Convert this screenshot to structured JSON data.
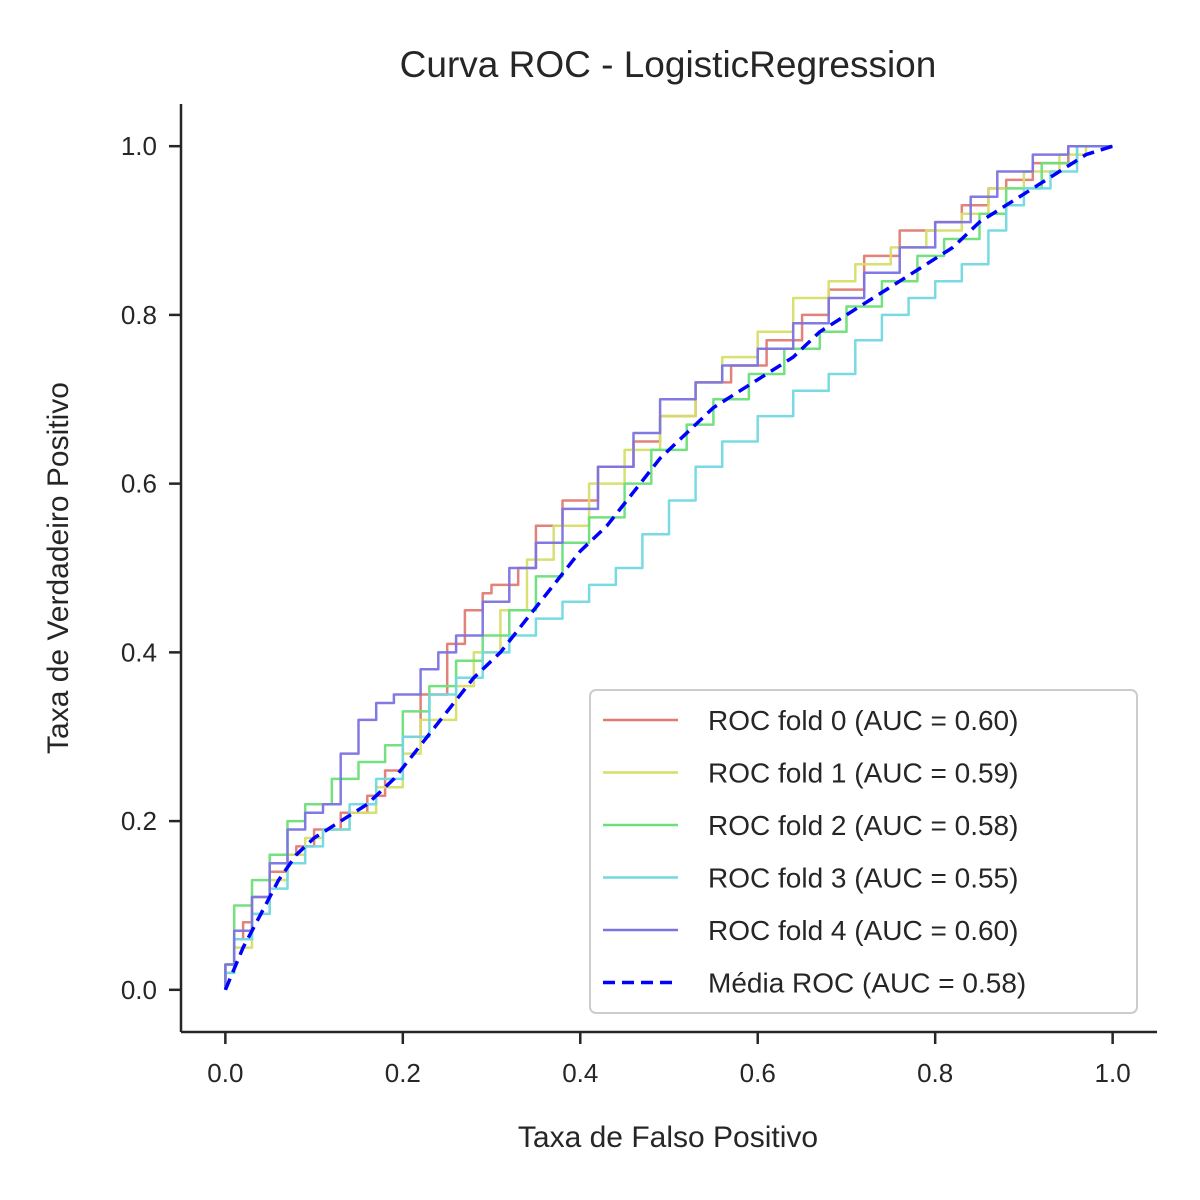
{
  "chart_data": {
    "type": "line",
    "title": "Curva ROC - LogisticRegression",
    "xlabel": "Taxa de Falso Positivo",
    "ylabel": "Taxa de Verdadeiro Positivo",
    "xlim": [
      -0.05,
      1.05
    ],
    "ylim": [
      -0.05,
      1.05
    ],
    "xticks": [
      0.0,
      0.2,
      0.4,
      0.6,
      0.8,
      1.0
    ],
    "yticks": [
      0.0,
      0.2,
      0.4,
      0.6,
      0.8,
      1.0
    ],
    "xtick_labels": [
      "0.0",
      "0.2",
      "0.4",
      "0.6",
      "0.8",
      "1.0"
    ],
    "ytick_labels": [
      "0.0",
      "0.2",
      "0.4",
      "0.6",
      "0.8",
      "1.0"
    ],
    "grid": false,
    "legend_position": "lower-right",
    "series": [
      {
        "name": "ROC fold 0 (AUC = 0.60)",
        "color": "#e07b72",
        "style": "solid",
        "step": true,
        "points": [
          [
            0,
            0
          ],
          [
            0.01,
            0.03
          ],
          [
            0.02,
            0.06
          ],
          [
            0.03,
            0.08
          ],
          [
            0.05,
            0.11
          ],
          [
            0.07,
            0.14
          ],
          [
            0.08,
            0.16
          ],
          [
            0.1,
            0.17
          ],
          [
            0.13,
            0.19
          ],
          [
            0.16,
            0.21
          ],
          [
            0.18,
            0.23
          ],
          [
            0.2,
            0.26
          ],
          [
            0.22,
            0.3
          ],
          [
            0.25,
            0.35
          ],
          [
            0.27,
            0.41
          ],
          [
            0.29,
            0.45
          ],
          [
            0.3,
            0.47
          ],
          [
            0.33,
            0.48
          ],
          [
            0.35,
            0.5
          ],
          [
            0.38,
            0.55
          ],
          [
            0.42,
            0.58
          ],
          [
            0.46,
            0.62
          ],
          [
            0.49,
            0.65
          ],
          [
            0.53,
            0.68
          ],
          [
            0.57,
            0.72
          ],
          [
            0.61,
            0.74
          ],
          [
            0.65,
            0.77
          ],
          [
            0.68,
            0.8
          ],
          [
            0.72,
            0.83
          ],
          [
            0.76,
            0.87
          ],
          [
            0.8,
            0.9
          ],
          [
            0.83,
            0.91
          ],
          [
            0.86,
            0.93
          ],
          [
            0.88,
            0.95
          ],
          [
            0.91,
            0.96
          ],
          [
            0.95,
            0.98
          ],
          [
            1.0,
            1.0
          ]
        ]
      },
      {
        "name": "ROC fold 1 (AUC = 0.59)",
        "color": "#d6de6a",
        "style": "solid",
        "step": true,
        "points": [
          [
            0,
            0
          ],
          [
            0.01,
            0.02
          ],
          [
            0.03,
            0.05
          ],
          [
            0.05,
            0.09
          ],
          [
            0.07,
            0.13
          ],
          [
            0.09,
            0.16
          ],
          [
            0.11,
            0.18
          ],
          [
            0.14,
            0.19
          ],
          [
            0.17,
            0.21
          ],
          [
            0.2,
            0.24
          ],
          [
            0.22,
            0.28
          ],
          [
            0.26,
            0.32
          ],
          [
            0.28,
            0.36
          ],
          [
            0.31,
            0.4
          ],
          [
            0.34,
            0.45
          ],
          [
            0.37,
            0.51
          ],
          [
            0.41,
            0.55
          ],
          [
            0.45,
            0.6
          ],
          [
            0.49,
            0.64
          ],
          [
            0.53,
            0.68
          ],
          [
            0.56,
            0.72
          ],
          [
            0.6,
            0.75
          ],
          [
            0.64,
            0.78
          ],
          [
            0.68,
            0.82
          ],
          [
            0.71,
            0.84
          ],
          [
            0.75,
            0.86
          ],
          [
            0.79,
            0.88
          ],
          [
            0.83,
            0.9
          ],
          [
            0.86,
            0.92
          ],
          [
            0.9,
            0.95
          ],
          [
            0.94,
            0.97
          ],
          [
            0.97,
            0.99
          ],
          [
            1.0,
            1.0
          ]
        ]
      },
      {
        "name": "ROC fold 2 (AUC = 0.58)",
        "color": "#6ddf7a",
        "style": "solid",
        "step": true,
        "points": [
          [
            0,
            0
          ],
          [
            0.01,
            0.03
          ],
          [
            0.03,
            0.1
          ],
          [
            0.05,
            0.13
          ],
          [
            0.07,
            0.16
          ],
          [
            0.09,
            0.2
          ],
          [
            0.12,
            0.22
          ],
          [
            0.15,
            0.25
          ],
          [
            0.18,
            0.27
          ],
          [
            0.2,
            0.29
          ],
          [
            0.23,
            0.33
          ],
          [
            0.26,
            0.36
          ],
          [
            0.29,
            0.39
          ],
          [
            0.32,
            0.42
          ],
          [
            0.35,
            0.45
          ],
          [
            0.38,
            0.49
          ],
          [
            0.41,
            0.53
          ],
          [
            0.45,
            0.56
          ],
          [
            0.48,
            0.6
          ],
          [
            0.52,
            0.64
          ],
          [
            0.55,
            0.67
          ],
          [
            0.59,
            0.7
          ],
          [
            0.63,
            0.73
          ],
          [
            0.67,
            0.76
          ],
          [
            0.7,
            0.78
          ],
          [
            0.74,
            0.81
          ],
          [
            0.78,
            0.84
          ],
          [
            0.81,
            0.87
          ],
          [
            0.85,
            0.89
          ],
          [
            0.88,
            0.92
          ],
          [
            0.92,
            0.95
          ],
          [
            0.96,
            0.98
          ],
          [
            1.0,
            1.0
          ]
        ]
      },
      {
        "name": "ROC fold 3 (AUC = 0.55)",
        "color": "#72d8e0",
        "style": "solid",
        "step": true,
        "points": [
          [
            0,
            0
          ],
          [
            0.01,
            0.02
          ],
          [
            0.03,
            0.06
          ],
          [
            0.05,
            0.09
          ],
          [
            0.07,
            0.12
          ],
          [
            0.09,
            0.15
          ],
          [
            0.11,
            0.17
          ],
          [
            0.14,
            0.19
          ],
          [
            0.17,
            0.22
          ],
          [
            0.2,
            0.25
          ],
          [
            0.23,
            0.3
          ],
          [
            0.26,
            0.35
          ],
          [
            0.29,
            0.37
          ],
          [
            0.32,
            0.4
          ],
          [
            0.35,
            0.42
          ],
          [
            0.38,
            0.44
          ],
          [
            0.41,
            0.46
          ],
          [
            0.44,
            0.48
          ],
          [
            0.47,
            0.5
          ],
          [
            0.5,
            0.54
          ],
          [
            0.53,
            0.58
          ],
          [
            0.56,
            0.62
          ],
          [
            0.6,
            0.65
          ],
          [
            0.64,
            0.68
          ],
          [
            0.68,
            0.71
          ],
          [
            0.71,
            0.73
          ],
          [
            0.74,
            0.77
          ],
          [
            0.77,
            0.8
          ],
          [
            0.8,
            0.82
          ],
          [
            0.83,
            0.84
          ],
          [
            0.86,
            0.86
          ],
          [
            0.88,
            0.9
          ],
          [
            0.9,
            0.93
          ],
          [
            0.93,
            0.95
          ],
          [
            0.96,
            0.97
          ],
          [
            1.0,
            1.0
          ]
        ]
      },
      {
        "name": "ROC fold 4 (AUC = 0.60)",
        "color": "#7b73e0",
        "style": "solid",
        "step": true,
        "points": [
          [
            0,
            0
          ],
          [
            0.01,
            0.03
          ],
          [
            0.03,
            0.07
          ],
          [
            0.05,
            0.11
          ],
          [
            0.07,
            0.15
          ],
          [
            0.09,
            0.19
          ],
          [
            0.11,
            0.21
          ],
          [
            0.13,
            0.22
          ],
          [
            0.15,
            0.28
          ],
          [
            0.17,
            0.32
          ],
          [
            0.19,
            0.34
          ],
          [
            0.22,
            0.35
          ],
          [
            0.24,
            0.38
          ],
          [
            0.26,
            0.4
          ],
          [
            0.29,
            0.42
          ],
          [
            0.32,
            0.46
          ],
          [
            0.35,
            0.5
          ],
          [
            0.38,
            0.53
          ],
          [
            0.42,
            0.57
          ],
          [
            0.46,
            0.62
          ],
          [
            0.49,
            0.66
          ],
          [
            0.53,
            0.7
          ],
          [
            0.56,
            0.72
          ],
          [
            0.6,
            0.74
          ],
          [
            0.64,
            0.76
          ],
          [
            0.68,
            0.79
          ],
          [
            0.72,
            0.82
          ],
          [
            0.76,
            0.85
          ],
          [
            0.8,
            0.88
          ],
          [
            0.84,
            0.91
          ],
          [
            0.87,
            0.94
          ],
          [
            0.91,
            0.97
          ],
          [
            0.95,
            0.99
          ],
          [
            1.0,
            1.0
          ]
        ]
      },
      {
        "name": "Média ROC (AUC = 0.58)",
        "color": "#0000ff",
        "style": "dashed",
        "step": false,
        "points": [
          [
            0,
            0
          ],
          [
            0.02,
            0.05
          ],
          [
            0.04,
            0.09
          ],
          [
            0.06,
            0.13
          ],
          [
            0.08,
            0.16
          ],
          [
            0.1,
            0.18
          ],
          [
            0.13,
            0.2
          ],
          [
            0.16,
            0.22
          ],
          [
            0.19,
            0.25
          ],
          [
            0.22,
            0.29
          ],
          [
            0.25,
            0.33
          ],
          [
            0.28,
            0.37
          ],
          [
            0.31,
            0.4
          ],
          [
            0.34,
            0.44
          ],
          [
            0.37,
            0.48
          ],
          [
            0.4,
            0.52
          ],
          [
            0.43,
            0.55
          ],
          [
            0.46,
            0.59
          ],
          [
            0.49,
            0.63
          ],
          [
            0.52,
            0.66
          ],
          [
            0.55,
            0.69
          ],
          [
            0.58,
            0.71
          ],
          [
            0.61,
            0.73
          ],
          [
            0.64,
            0.75
          ],
          [
            0.67,
            0.78
          ],
          [
            0.7,
            0.8
          ],
          [
            0.73,
            0.82
          ],
          [
            0.76,
            0.84
          ],
          [
            0.79,
            0.86
          ],
          [
            0.82,
            0.88
          ],
          [
            0.85,
            0.91
          ],
          [
            0.88,
            0.93
          ],
          [
            0.91,
            0.95
          ],
          [
            0.94,
            0.97
          ],
          [
            0.97,
            0.99
          ],
          [
            1.0,
            1.0
          ]
        ]
      }
    ]
  },
  "colors": {
    "axis": "#262626",
    "legend_border": "#cccccc",
    "background": "#ffffff"
  }
}
